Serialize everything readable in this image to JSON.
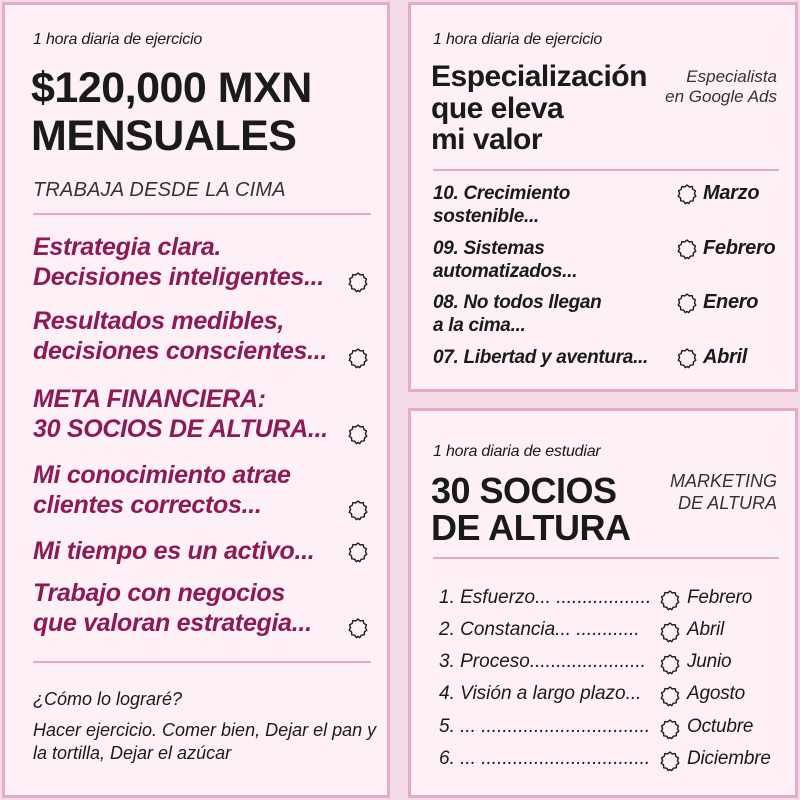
{
  "left": {
    "kicker": "1 hora diaria de ejercicio",
    "headline": [
      "$120,000 MXN",
      "MENSUALES"
    ],
    "subtitle": "TRABAJA DESDE LA CIMA",
    "goals": [
      [
        "Estrategia clara.",
        "Decisiones inteligentes..."
      ],
      [
        "Resultados medibles,",
        "decisiones conscientes..."
      ],
      [
        "META FINANCIERA:",
        "30 SOCIOS DE ALTURA..."
      ],
      [
        "Mi conocimiento atrae",
        "clientes correctos..."
      ],
      [
        "Mi tiempo es un activo..."
      ],
      [
        "Trabajo con negocios",
        "que valoran estrategia..."
      ]
    ],
    "question": "¿Cómo lo lograré?",
    "answer": "Hacer ejercicio.  Comer bien, Dejar el pan y la tortilla, Dejar el azúcar"
  },
  "top_right": {
    "kicker": "1 hora diaria de ejercicio",
    "headline": [
      "Especialización",
      "que eleva",
      "mi valor"
    ],
    "side_label": [
      "Especialista",
      "en Google Ads"
    ],
    "rows": [
      {
        "label": [
          "10. Crecimiento",
          "sostenible..."
        ],
        "month": "Marzo"
      },
      {
        "label": [
          "09. Sistemas",
          "automatizados..."
        ],
        "month": "Febrero"
      },
      {
        "label": [
          "08. No todos llegan",
          "a la cima..."
        ],
        "month": "Enero"
      },
      {
        "label": [
          "07. Libertad y aventura..."
        ],
        "month": "Abril"
      }
    ]
  },
  "bottom_right": {
    "kicker": "1 hora diaria de estudiar",
    "headline": [
      "30 SOCIOS",
      "DE ALTURA"
    ],
    "side_label": [
      "MARKETING",
      "DE ALTURA"
    ],
    "rows": [
      {
        "label": "1. Esfuerzo... ..................",
        "month": "Febrero"
      },
      {
        "label": "2. Constancia... ............",
        "month": "Abril"
      },
      {
        "label": "3. Proceso......................",
        "month": "Junio"
      },
      {
        "label": "4. Visión a largo plazo...",
        "month": "Agosto"
      },
      {
        "label": "5. ... ................................",
        "month": "Octubre"
      },
      {
        "label": "6. ... ................................",
        "month": "Diciembre"
      }
    ]
  },
  "colors": {
    "accent": "#8e1a55",
    "border": "#e7aacb",
    "card": "#fdf0f7",
    "page": "#f3dbe7"
  },
  "icons": {
    "badge": "scalloped-badge-icon"
  }
}
